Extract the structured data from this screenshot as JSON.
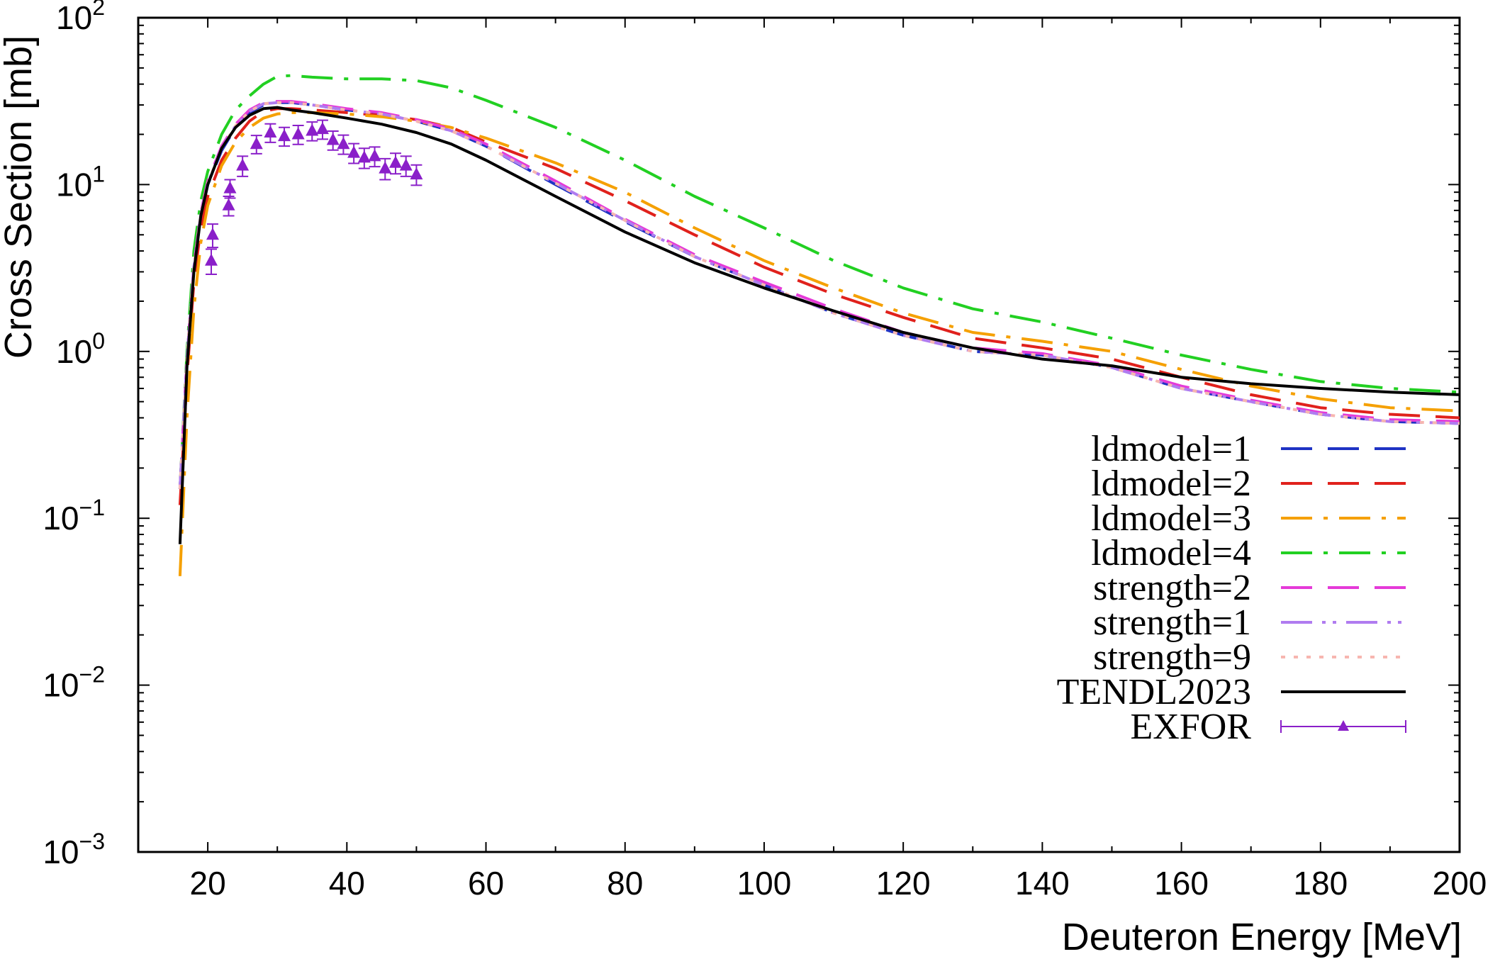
{
  "chart_data": {
    "type": "line",
    "xlabel": "Deuteron Energy [MeV]",
    "ylabel": "Cross Section [mb]",
    "xlim": [
      10,
      200
    ],
    "ylim": [
      0.001,
      100
    ],
    "yscale": "log",
    "x_ticks": [
      20,
      40,
      60,
      80,
      100,
      120,
      140,
      160,
      180,
      200
    ],
    "x_tick_labels": [
      "20",
      "40",
      "60",
      "80",
      "100",
      "120",
      "140",
      "160",
      "180",
      "200"
    ],
    "y_ticks": [
      {
        "value": 0.001,
        "base": "10",
        "exp": "−3"
      },
      {
        "value": 0.01,
        "base": "10",
        "exp": "−2"
      },
      {
        "value": 0.1,
        "base": "10",
        "exp": "−1"
      },
      {
        "value": 1,
        "base": "10",
        "exp": "0"
      },
      {
        "value": 10,
        "base": "10",
        "exp": "1"
      },
      {
        "value": 100,
        "base": "10",
        "exp": "2"
      }
    ],
    "legend_position": "bottom-right",
    "series": [
      {
        "name": "ldmodel=1",
        "color": "#1f33c4",
        "style": "dash",
        "x": [
          16,
          17,
          18,
          19,
          20,
          22,
          24,
          26,
          28,
          30,
          32,
          35,
          40,
          45,
          50,
          55,
          60,
          70,
          80,
          90,
          100,
          110,
          120,
          130,
          140,
          150,
          160,
          170,
          180,
          190,
          200
        ],
        "y": [
          0.15,
          0.9,
          3.2,
          6.5,
          10,
          16,
          22,
          27,
          30,
          31,
          31,
          30,
          28,
          26.5,
          24,
          21,
          17,
          10,
          6,
          3.7,
          2.5,
          1.7,
          1.25,
          1.0,
          0.95,
          0.8,
          0.6,
          0.5,
          0.42,
          0.38,
          0.37
        ]
      },
      {
        "name": "ldmodel=2",
        "color": "#e0211c",
        "style": "dash",
        "x": [
          16,
          17,
          18,
          19,
          20,
          22,
          24,
          26,
          28,
          30,
          32,
          35,
          40,
          45,
          50,
          55,
          60,
          70,
          80,
          90,
          100,
          110,
          120,
          130,
          140,
          150,
          160,
          170,
          180,
          190,
          200
        ],
        "y": [
          0.12,
          0.7,
          2.6,
          5.5,
          8.5,
          14,
          19,
          24,
          27.5,
          28.5,
          28.5,
          28,
          27,
          26,
          24.5,
          22,
          18,
          12.5,
          8,
          5,
          3.2,
          2.2,
          1.6,
          1.2,
          1.05,
          0.9,
          0.7,
          0.55,
          0.46,
          0.42,
          0.4
        ]
      },
      {
        "name": "ldmodel=3",
        "color": "#f5a000",
        "style": "dashdot",
        "x": [
          16,
          17,
          18,
          19,
          20,
          22,
          24,
          26,
          28,
          30,
          32,
          35,
          40,
          45,
          50,
          55,
          60,
          70,
          80,
          90,
          100,
          110,
          120,
          130,
          140,
          150,
          160,
          170,
          180,
          190,
          200
        ],
        "y": [
          0.045,
          0.4,
          1.8,
          4.5,
          7.5,
          13,
          18,
          22,
          25,
          26.5,
          27,
          27,
          26.5,
          25.5,
          24,
          22,
          19,
          13.5,
          9,
          5.5,
          3.5,
          2.4,
          1.7,
          1.3,
          1.15,
          1.0,
          0.78,
          0.62,
          0.52,
          0.46,
          0.44
        ]
      },
      {
        "name": "ldmodel=4",
        "color": "#22d022",
        "style": "dashdot",
        "x": [
          16,
          17,
          18,
          19,
          20,
          22,
          24,
          26,
          28,
          30,
          32,
          35,
          40,
          45,
          50,
          55,
          60,
          70,
          80,
          90,
          100,
          110,
          120,
          130,
          140,
          150,
          160,
          170,
          180,
          190,
          200
        ],
        "y": [
          0.15,
          1.0,
          4.0,
          8.0,
          12,
          20,
          28,
          34,
          40,
          44.5,
          45,
          44,
          43,
          43,
          42,
          38,
          32,
          22,
          14,
          8.5,
          5.5,
          3.5,
          2.4,
          1.8,
          1.5,
          1.2,
          0.95,
          0.78,
          0.66,
          0.6,
          0.57
        ]
      },
      {
        "name": "strength=2",
        "color": "#e53ad8",
        "style": "dash",
        "x": [
          16,
          17,
          18,
          19,
          20,
          22,
          24,
          26,
          28,
          30,
          32,
          35,
          40,
          45,
          50,
          55,
          60,
          70,
          80,
          90,
          100,
          110,
          120,
          130,
          140,
          150,
          160,
          170,
          180,
          190,
          200
        ],
        "y": [
          0.15,
          0.9,
          3.3,
          6.8,
          10.5,
          17,
          23,
          28,
          31,
          31.5,
          31.5,
          30.5,
          28.5,
          27,
          24.5,
          21.5,
          17.5,
          10.5,
          6.2,
          3.8,
          2.6,
          1.8,
          1.3,
          1.05,
          0.97,
          0.82,
          0.62,
          0.51,
          0.43,
          0.39,
          0.38
        ]
      },
      {
        "name": "strength=1",
        "color": "#b07cf0",
        "style": "dashdotdot",
        "x": [
          16,
          17,
          18,
          19,
          20,
          22,
          24,
          26,
          28,
          30,
          32,
          35,
          40,
          45,
          50,
          55,
          60,
          70,
          80,
          90,
          100,
          110,
          120,
          130,
          140,
          150,
          160,
          170,
          180,
          190,
          200
        ],
        "y": [
          0.15,
          0.9,
          3.2,
          6.6,
          10.2,
          16.5,
          22.5,
          27.5,
          30.5,
          31,
          31,
          30,
          28,
          26.5,
          24,
          21,
          17,
          10.2,
          6.1,
          3.7,
          2.5,
          1.7,
          1.25,
          1.0,
          0.95,
          0.8,
          0.6,
          0.5,
          0.42,
          0.38,
          0.37
        ]
      },
      {
        "name": "strength=9",
        "color": "#f7b6b0",
        "style": "dot",
        "x": [
          16,
          17,
          18,
          19,
          20,
          22,
          24,
          26,
          28,
          30,
          32,
          35,
          40,
          45,
          50,
          55,
          60,
          70,
          80,
          90,
          100,
          110,
          120,
          130,
          140,
          150,
          160,
          170,
          180,
          190,
          200
        ],
        "y": [
          0.15,
          0.9,
          3.2,
          6.6,
          10.2,
          16.5,
          22.5,
          27.5,
          30.5,
          31,
          31,
          30,
          28,
          26.5,
          24,
          21,
          17,
          10.2,
          6.1,
          3.7,
          2.5,
          1.7,
          1.25,
          1.0,
          0.95,
          0.8,
          0.6,
          0.5,
          0.42,
          0.38,
          0.37
        ]
      },
      {
        "name": "TENDL2023",
        "color": "#000000",
        "style": "solid",
        "x": [
          16,
          17,
          18,
          19,
          20,
          22,
          24,
          26,
          28,
          30,
          32,
          35,
          40,
          45,
          50,
          55,
          60,
          70,
          80,
          90,
          100,
          110,
          120,
          130,
          140,
          150,
          160,
          170,
          180,
          190,
          200
        ],
        "y": [
          0.07,
          0.8,
          3.0,
          6.5,
          10,
          16.5,
          22,
          26,
          28.5,
          29,
          28,
          27,
          25,
          23,
          20.5,
          17.5,
          14,
          8.5,
          5.2,
          3.4,
          2.4,
          1.75,
          1.3,
          1.05,
          0.9,
          0.82,
          0.7,
          0.64,
          0.6,
          0.57,
          0.55
        ]
      }
    ],
    "exfor": {
      "name": "EXFOR",
      "color": "#8a1fc9",
      "points": [
        {
          "x": 20.5,
          "y": 3.5,
          "err": 0.6
        },
        {
          "x": 20.7,
          "y": 5.0,
          "err": 0.8
        },
        {
          "x": 23.0,
          "y": 7.5,
          "err": 1.0
        },
        {
          "x": 23.2,
          "y": 9.5,
          "err": 1.2
        },
        {
          "x": 25.0,
          "y": 13.0,
          "err": 1.8
        },
        {
          "x": 27.0,
          "y": 17.5,
          "err": 2.2
        },
        {
          "x": 29.0,
          "y": 20.5,
          "err": 2.6
        },
        {
          "x": 31.0,
          "y": 19.5,
          "err": 2.5
        },
        {
          "x": 33.0,
          "y": 20.0,
          "err": 2.6
        },
        {
          "x": 35.0,
          "y": 21.0,
          "err": 2.7
        },
        {
          "x": 36.5,
          "y": 21.5,
          "err": 2.8
        },
        {
          "x": 38.0,
          "y": 18.5,
          "err": 2.4
        },
        {
          "x": 39.5,
          "y": 17.5,
          "err": 2.3
        },
        {
          "x": 41.0,
          "y": 15.5,
          "err": 2.1
        },
        {
          "x": 42.5,
          "y": 14.5,
          "err": 2.0
        },
        {
          "x": 44.0,
          "y": 14.8,
          "err": 2.0
        },
        {
          "x": 45.5,
          "y": 12.5,
          "err": 1.8
        },
        {
          "x": 47.0,
          "y": 13.5,
          "err": 1.9
        },
        {
          "x": 48.5,
          "y": 13.0,
          "err": 1.8
        },
        {
          "x": 50.0,
          "y": 11.5,
          "err": 1.6
        }
      ]
    }
  }
}
